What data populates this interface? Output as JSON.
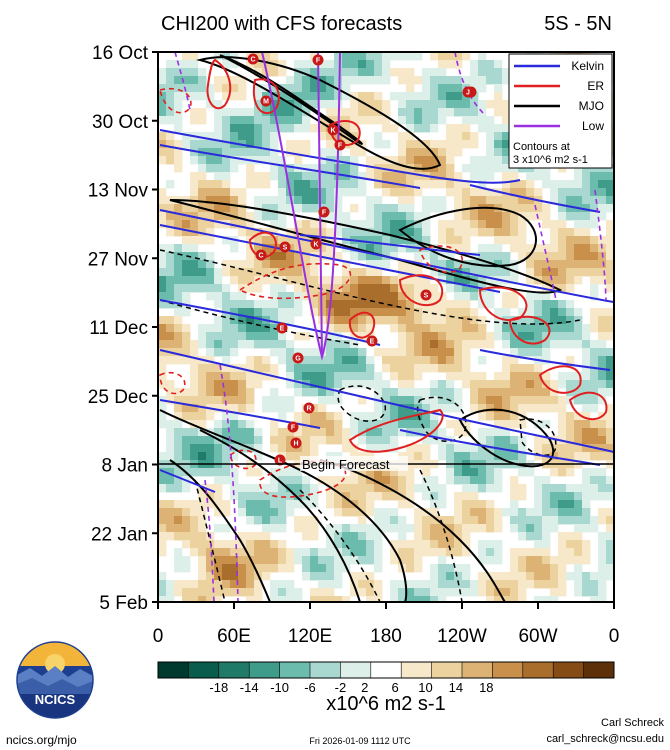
{
  "chart_data": {
    "type": "heatmap",
    "title": "CHI200 with CFS forecasts",
    "subtitle": "5S - 5N",
    "xlabel": "",
    "ylabel": "",
    "x_ticks": [
      "0",
      "60E",
      "120E",
      "180",
      "120W",
      "60W",
      "0"
    ],
    "x_range_deg": [
      0,
      360
    ],
    "y_ticks": [
      "16 Oct",
      "30 Oct",
      "13 Nov",
      "27 Nov",
      "11 Dec",
      "25 Dec",
      "8 Jan",
      "22 Jan",
      "5 Feb"
    ],
    "legend": {
      "placement": "top-right",
      "entries": [
        {
          "name": "Kelvin",
          "color": "#2a2adc"
        },
        {
          "name": "ER",
          "color": "#e02020"
        },
        {
          "name": "MJO",
          "color": "#000000"
        },
        {
          "name": "Low",
          "color": "#9b30e0"
        }
      ],
      "note_line1": "Contours at",
      "note_line2": "3 x10^6 m2 s-1"
    },
    "forecast_line": {
      "label": "Begin Forecast",
      "date": "8 Jan"
    },
    "colorbar": {
      "label": "x10^6 m2 s-1",
      "tick_labels": [
        "-18",
        "-14",
        "-10",
        "-6",
        "-2",
        "2",
        "6",
        "10",
        "14",
        "18"
      ],
      "colors": [
        "#003a2e",
        "#0a5c4c",
        "#1f7a68",
        "#3f9c8a",
        "#6cbcae",
        "#a8d8cf",
        "#dcefe9",
        "#ffffff",
        "#f6e8c8",
        "#ecd29e",
        "#dcb374",
        "#c8904a",
        "#aa6e2c",
        "#864c16",
        "#5e300a"
      ]
    },
    "wave_labels": [
      "C",
      "F",
      "M",
      "K",
      "F",
      "F",
      "S",
      "C",
      "S",
      "K",
      "S",
      "E",
      "G",
      "E",
      "F",
      "R",
      "H",
      "L",
      "J"
    ]
  },
  "footer": {
    "org": "NCICS",
    "url": "ncics.org/mjo",
    "timestamp": "Fri 2026-01-09 1112 UTC",
    "author": "Carl Schreck",
    "email": "carl_schreck@ncsu.edu"
  }
}
